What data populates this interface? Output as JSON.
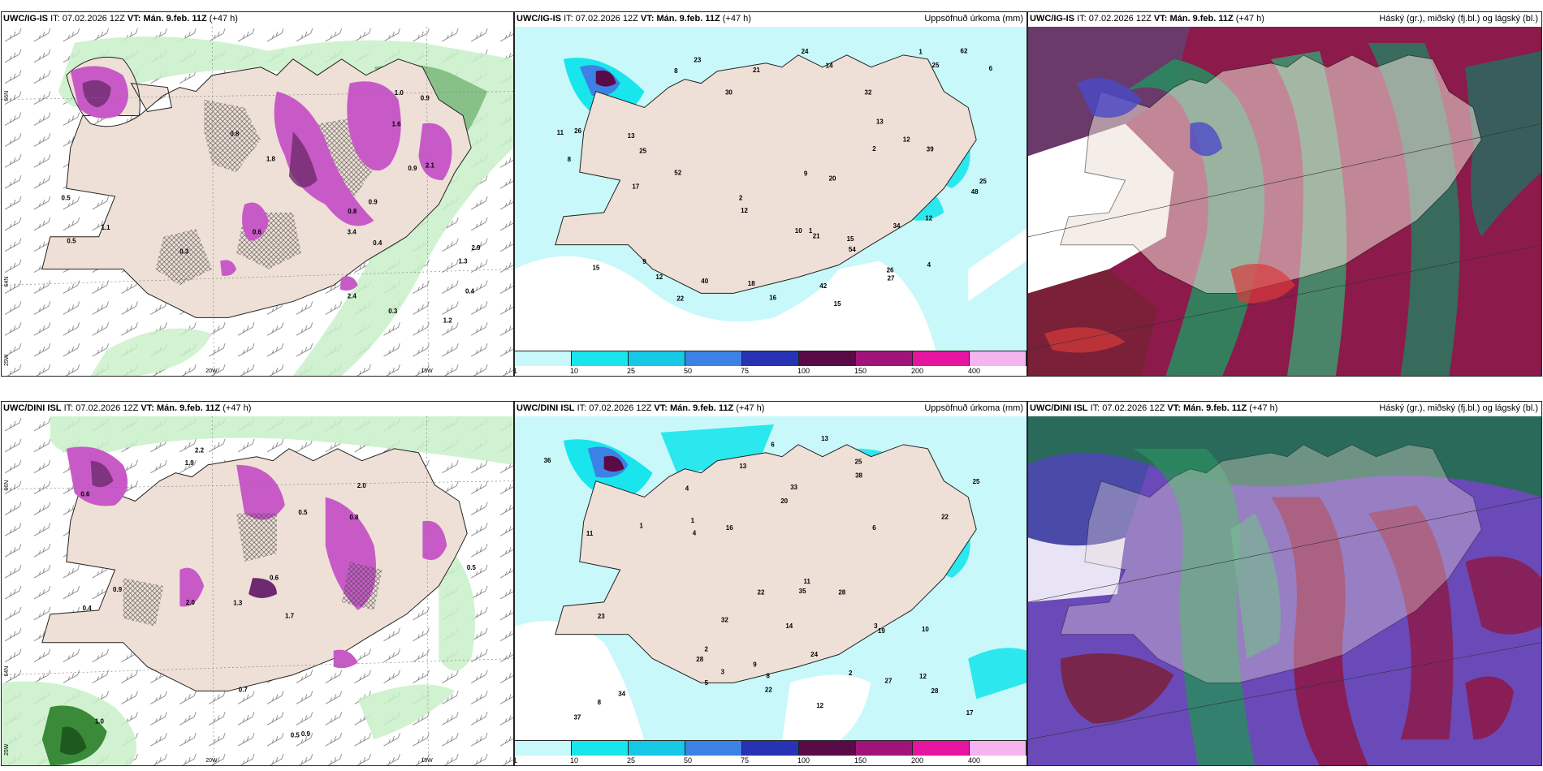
{
  "rows": [
    {
      "model": "UWC/IG-IS",
      "it_label": "IT:",
      "it": "07.02.2026 12Z",
      "vt_label": "VT:",
      "vt": "Mán. 9.feb. 11Z",
      "lead": "(+47 h)"
    },
    {
      "model": "UWC/DINI ISL",
      "it_label": "IT:",
      "it": "07.02.2026 12Z",
      "vt_label": "VT:",
      "vt": "Mán. 9.feb. 11Z",
      "lead": "(+47 h)"
    }
  ],
  "precip_title": "Uppsöfnuð úrkoma (mm)",
  "cloud_title": "Háský (gr.), miðský (fj.bl.) og lágský (bl.)",
  "axes": {
    "lat_66": "66N",
    "lat_64": "64N",
    "lon_25": "25W",
    "lon_20": "20W",
    "lon_15": "15W"
  },
  "colorbar": {
    "labels": [
      "1",
      "10",
      "25",
      "50",
      "75",
      "100",
      "150",
      "200",
      "400"
    ],
    "colors": [
      "#c8f8fa",
      "#19e6ec",
      "#14c8e6",
      "#3c82e6",
      "#2832b4",
      "#5a0a46",
      "#a0147a",
      "#e614a0",
      "#f5b4f0"
    ]
  },
  "precip_labels_top": [
    "15",
    "8",
    "9",
    "13",
    "12",
    "42",
    "48",
    "52",
    "12",
    "12",
    "15",
    "11",
    "2",
    "1",
    "2",
    "1",
    "8",
    "25",
    "34",
    "39",
    "26",
    "21",
    "22",
    "27",
    "20",
    "13",
    "17",
    "25",
    "16",
    "30",
    "54",
    "62",
    "32",
    "40",
    "23",
    "18",
    "24",
    "26",
    "25",
    "15",
    "21",
    "9",
    "6",
    "4",
    "14",
    "12",
    "10"
  ],
  "precip_labels_bottom": [
    "8",
    "10",
    "11",
    "14",
    "13",
    "13",
    "12",
    "25",
    "27",
    "28",
    "17",
    "4",
    "3",
    "6",
    "2",
    "1",
    "3",
    "23",
    "22",
    "25",
    "36",
    "34",
    "22",
    "28",
    "19",
    "38",
    "16",
    "20",
    "22",
    "24",
    "28",
    "32",
    "33",
    "37",
    "35",
    "12",
    "8",
    "6",
    "11",
    "9",
    "1",
    "2",
    "4",
    "5"
  ],
  "snow_labels_top": [
    "3.4",
    "2.9",
    "0.9",
    "1.3",
    "2.4",
    "1.6",
    "2.1",
    "1.8",
    "0.4",
    "0.3",
    "0.9",
    "0.8",
    "0.5",
    "0.4",
    "0.3",
    "1.2",
    "0.9",
    "1.1",
    "1.0",
    "0.8",
    "0.6",
    "0.5"
  ],
  "snow_labels_bottom": [
    "2.2",
    "2.0",
    "0.5",
    "1.3",
    "1.7",
    "0.9",
    "0.6",
    "0.8",
    "0.4",
    "0.5",
    "0.6",
    "1.0",
    "1.9",
    "2.0",
    "0.5",
    "0.9",
    "0.7"
  ]
}
